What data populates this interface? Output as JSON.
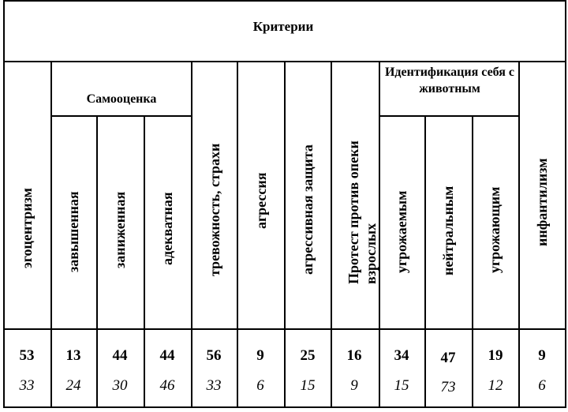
{
  "table": {
    "title": "Критерии",
    "groups": {
      "self_esteem": "Самооценка",
      "identification": "Идентификация себя с животным"
    },
    "columns": [
      {
        "key": "egocentrism",
        "label": "эгоцентризм",
        "value": "53",
        "value2": "33"
      },
      {
        "key": "inflated",
        "label": "завышенная",
        "value": "13",
        "value2": "24"
      },
      {
        "key": "lowered",
        "label": "заниженная",
        "value": "44",
        "value2": "30"
      },
      {
        "key": "adequate",
        "label": "адекватная",
        "value": "44",
        "value2": "46"
      },
      {
        "key": "anxiety",
        "label": "тревожность, страхи",
        "value": "56",
        "value2": "33"
      },
      {
        "key": "aggression",
        "label": "агрессия",
        "value": "9",
        "value2": "6"
      },
      {
        "key": "aggr_defense",
        "label": "агрессивная защита",
        "value": "25",
        "value2": "15"
      },
      {
        "key": "protest",
        "label": "Протест против опеки взрослых",
        "value": "16",
        "value2": "9"
      },
      {
        "key": "threatened",
        "label": "угрожаемым",
        "value": "34",
        "value2": "15"
      },
      {
        "key": "neutral",
        "label": "нейтральным",
        "value": "47",
        "value2": "73"
      },
      {
        "key": "threatening",
        "label": "угрожающим",
        "value": "19",
        "value2": "12"
      },
      {
        "key": "infantilism",
        "label": "инфантилизм",
        "value": "9",
        "value2": "6"
      }
    ]
  }
}
